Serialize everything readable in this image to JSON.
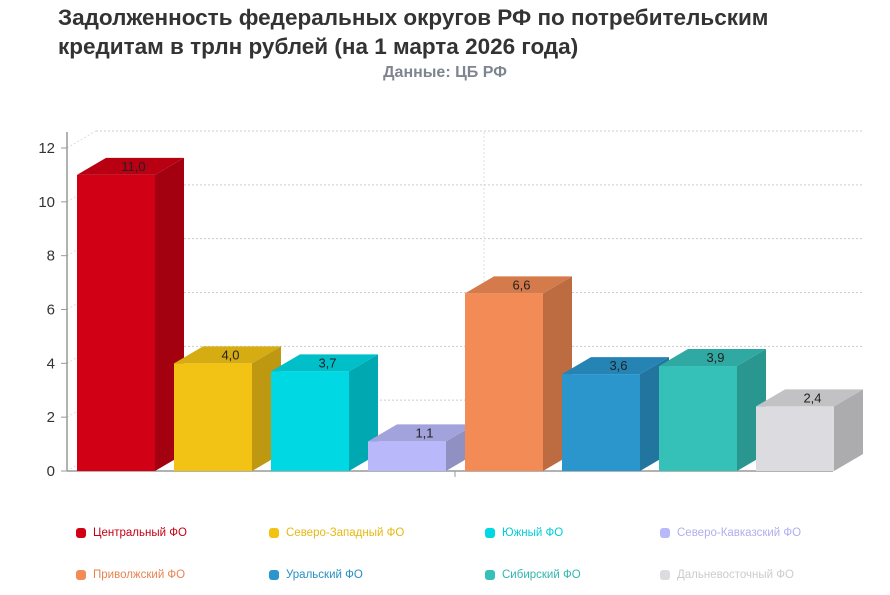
{
  "chart_data": {
    "type": "bar",
    "title": "Задолженность федеральных округов РФ по потребительским кредитам в трлн рублей (на 1 марта 2026 года)",
    "subtitle": "Данные: ЦБ РФ",
    "xlabel": "",
    "ylabel": "",
    "ylim": [
      0,
      12
    ],
    "yticks": [
      "0",
      "2",
      "4",
      "6",
      "8",
      "10",
      "12"
    ],
    "grid": true,
    "legend_position": "bottom",
    "series": [
      {
        "name": "Центральный ФО",
        "value": 11.0,
        "label": "11,0",
        "color": "#d10014"
      },
      {
        "name": "Северо-Западный ФО",
        "value": 4.0,
        "label": "4,0",
        "color": "#f2c314"
      },
      {
        "name": "Южный ФО",
        "value": 3.7,
        "label": "3,7",
        "color": "#00d9e3"
      },
      {
        "name": "Северо-Кавказский ФО",
        "value": 1.1,
        "label": "1,1",
        "color": "#b8b8fa"
      },
      {
        "name": "Приволжский ФО",
        "value": 6.6,
        "label": "6,6",
        "color": "#f28b55"
      },
      {
        "name": "Уральский ФО",
        "value": 3.6,
        "label": "3,6",
        "color": "#2a96cc"
      },
      {
        "name": "Сибирский ФО",
        "value": 3.9,
        "label": "3,9",
        "color": "#35c0b8"
      },
      {
        "name": "Дальневосточный ФО",
        "value": 2.4,
        "label": "2,4",
        "color": "#dcdce0"
      }
    ]
  }
}
